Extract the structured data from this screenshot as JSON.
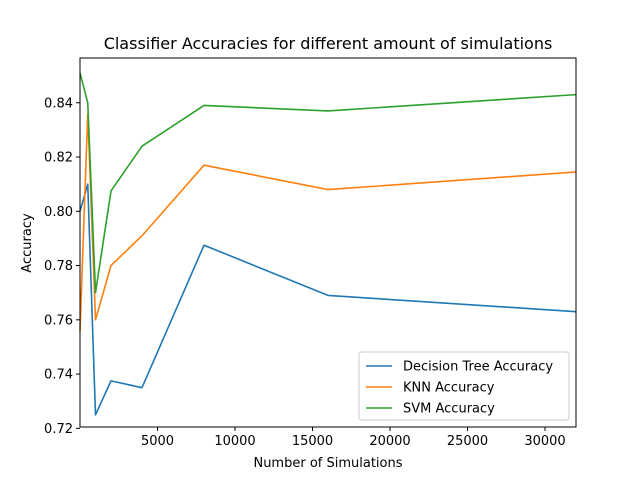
{
  "chart_data": {
    "type": "line",
    "title": "Classifier Accuracies for different amount of simulations",
    "xlabel": "Number of Simulations",
    "ylabel": "Accuracy",
    "xlim": [
      0,
      32000
    ],
    "ylim": [
      0.7205,
      0.8565
    ],
    "x_ticks": [
      5000,
      10000,
      15000,
      20000,
      25000,
      30000
    ],
    "x_tick_labels": [
      "5000",
      "10000",
      "15000",
      "20000",
      "25000",
      "30000"
    ],
    "y_ticks": [
      0.72,
      0.74,
      0.76,
      0.78,
      0.8,
      0.82,
      0.84
    ],
    "y_tick_labels": [
      "0.72",
      "0.74",
      "0.76",
      "0.78",
      "0.80",
      "0.82",
      "0.84"
    ],
    "grid": false,
    "legend_position": "lower-right",
    "x": [
      0,
      500,
      1000,
      2000,
      4000,
      8000,
      16000,
      32000
    ],
    "series": [
      {
        "name": "Decision Tree Accuracy",
        "color": "#1f77b4",
        "values": [
          0.8,
          0.81,
          0.725,
          0.7375,
          0.735,
          0.7875,
          0.769,
          0.763
        ]
      },
      {
        "name": "KNN Accuracy",
        "color": "#ff7f0e",
        "values": [
          0.756,
          0.836,
          0.76,
          0.78,
          0.791,
          0.817,
          0.808,
          0.8145
        ]
      },
      {
        "name": "SVM Accuracy",
        "color": "#2ca02c",
        "values": [
          0.851,
          0.84,
          0.77,
          0.8075,
          0.824,
          0.839,
          0.837,
          0.843
        ]
      }
    ]
  }
}
